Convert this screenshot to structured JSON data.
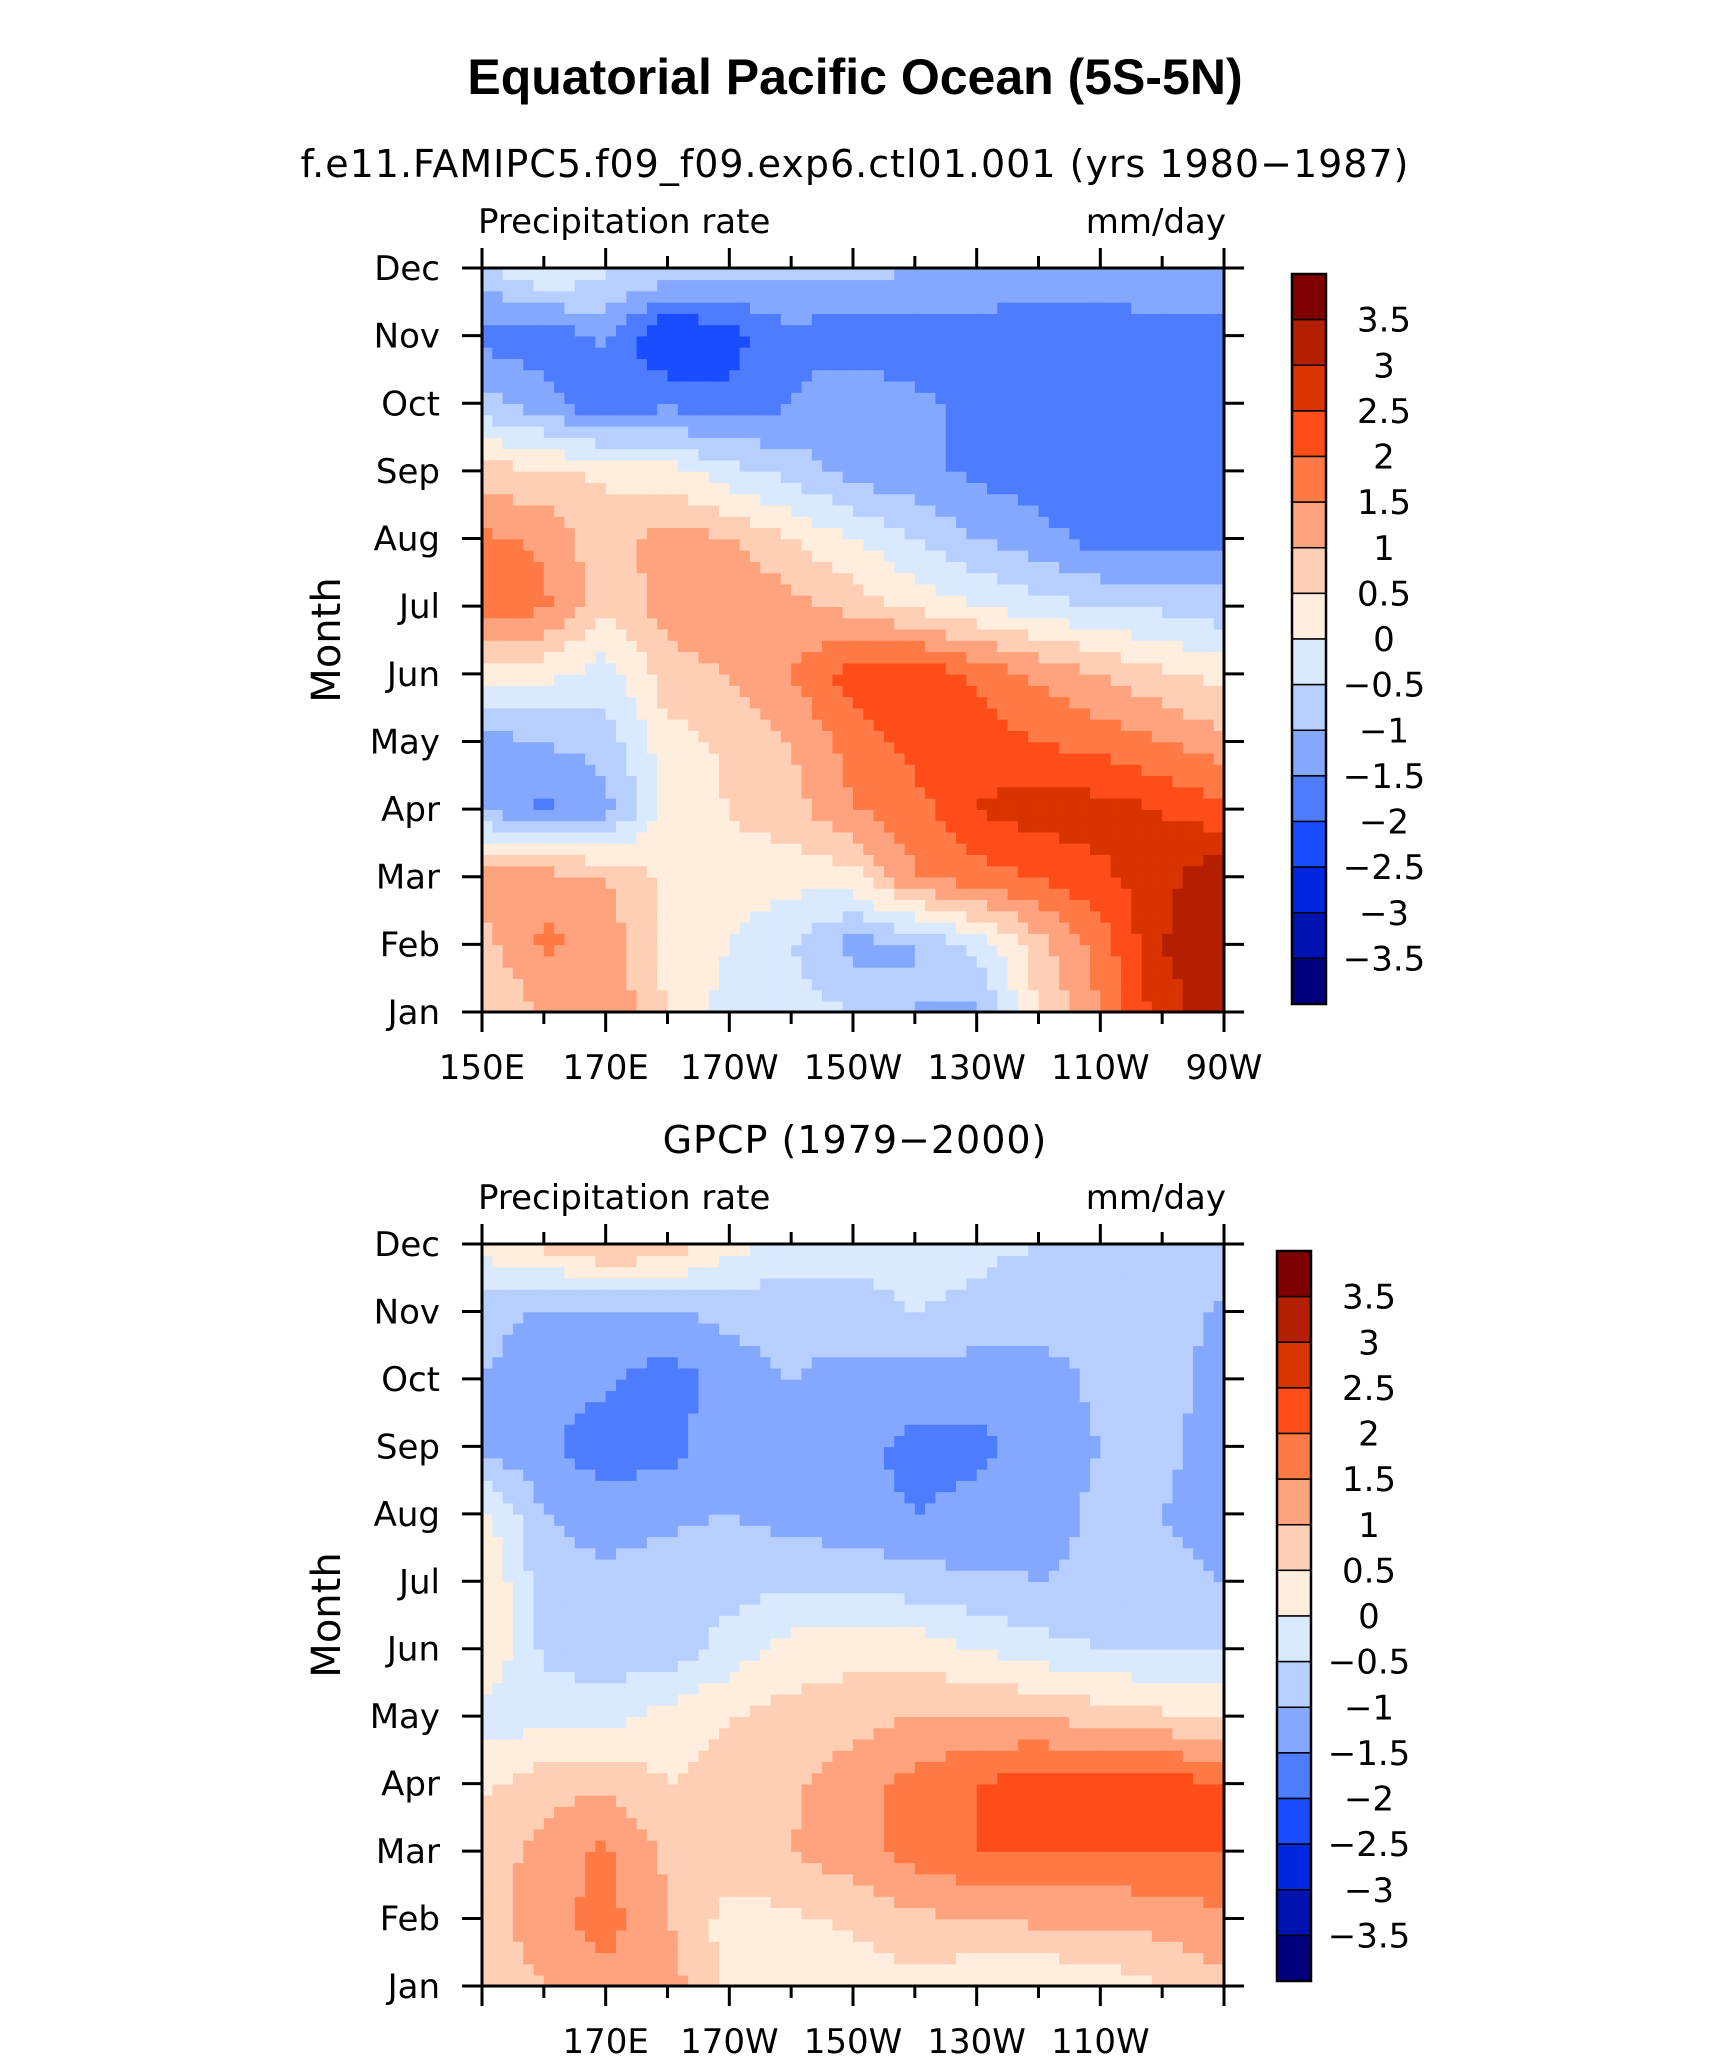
{
  "figure": {
    "title": "Equatorial Pacific Ocean (5S-5N)"
  },
  "colorbar": {
    "levels": [
      3.5,
      3,
      2.5,
      2,
      1.5,
      1,
      0.5,
      0,
      -0.5,
      -1,
      -1.5,
      -2,
      -2.5,
      -3,
      -3.5
    ],
    "labels": [
      "3.5",
      "3",
      "2.5",
      "2",
      "1.5",
      "1",
      "0.5",
      "0",
      "−0.5",
      "−1",
      "−1.5",
      "−2",
      "−2.5",
      "−3",
      "−3.5"
    ],
    "colors": [
      "#7f0000",
      "#b31f00",
      "#d93300",
      "#ff4d1a",
      "#ff7a45",
      "#ffa37f",
      "#ffcfb5",
      "#ffeedd",
      "#d9eaff",
      "#b7cfff",
      "#85a8ff",
      "#4d7cff",
      "#1a4dff",
      "#0026e0",
      "#0012b0",
      "#00007f"
    ]
  },
  "chart_data": [
    {
      "type": "heatmap",
      "subtitle": "f.e11.FAMIPC5.f09_f09.exp6.ctl01.001 (yrs 1980−1987)",
      "left_label": "Precipitation rate",
      "right_label": "mm/day",
      "ylabel": "Month",
      "x_tick_labels": [
        "150E",
        "170E",
        "170W",
        "150W",
        "130W",
        "110W",
        "90W"
      ],
      "y_tick_labels": [
        "Jan",
        "Feb",
        "Mar",
        "Apr",
        "May",
        "Jun",
        "Jul",
        "Aug",
        "Sep",
        "Oct",
        "Nov",
        "Dec"
      ],
      "x_longitudes": [
        150,
        160,
        170,
        180,
        190,
        200,
        210,
        220,
        230,
        240,
        250,
        260,
        270
      ],
      "z": [
        [
          0.5,
          1.0,
          1.5,
          0.5,
          -0.2,
          -0.3,
          -0.5,
          -1.0,
          -1.2,
          0.5,
          1.5,
          2.8,
          3.3
        ],
        [
          0.8,
          1.6,
          1.3,
          0.3,
          0.0,
          -0.5,
          -1.2,
          -1.0,
          -0.3,
          0.8,
          1.7,
          3.0,
          3.4
        ],
        [
          1.2,
          1.3,
          1.0,
          0.4,
          0.3,
          0.2,
          0.3,
          1.5,
          1.8,
          2.0,
          2.4,
          2.8,
          3.5
        ],
        [
          -1.0,
          -1.6,
          -1.2,
          0.2,
          0.5,
          0.8,
          1.5,
          1.8,
          2.5,
          2.8,
          2.7,
          2.5,
          2.1
        ],
        [
          -1.2,
          -1.0,
          -0.8,
          0.3,
          0.6,
          1.0,
          1.7,
          2.2,
          2.3,
          2.0,
          1.8,
          1.5,
          1.2
        ],
        [
          0.3,
          0.2,
          -0.3,
          0.8,
          1.0,
          1.5,
          2.3,
          2.5,
          1.9,
          1.4,
          1.0,
          0.6,
          0.3
        ],
        [
          1.8,
          1.6,
          0.6,
          1.2,
          1.5,
          1.2,
          0.8,
          0.4,
          0.0,
          -0.3,
          -0.5,
          -0.6,
          -0.8
        ],
        [
          1.6,
          1.4,
          0.7,
          1.3,
          1.0,
          0.5,
          0.0,
          -0.5,
          -1.0,
          -1.3,
          -1.7,
          -1.6,
          -1.6
        ],
        [
          0.7,
          0.6,
          0.4,
          0.2,
          -0.3,
          -0.7,
          -1.2,
          -1.4,
          -1.6,
          -1.8,
          -1.8,
          -1.7,
          -1.5
        ],
        [
          -0.8,
          -1.3,
          -2.0,
          -1.6,
          -1.9,
          -1.5,
          -1.0,
          -1.4,
          -1.6,
          -1.8,
          -1.8,
          -1.8,
          -2.0
        ],
        [
          -1.7,
          -1.8,
          -1.4,
          -2.6,
          -2.2,
          -1.6,
          -2.0,
          -1.8,
          -1.8,
          -1.9,
          -1.9,
          -1.8,
          -1.8
        ],
        [
          -0.7,
          0.1,
          -0.4,
          -0.6,
          -0.9,
          -0.8,
          -0.7,
          -1.0,
          -1.0,
          -1.1,
          -1.0,
          -1.0,
          -1.0
        ]
      ]
    },
    {
      "type": "heatmap",
      "subtitle": "GPCP (1979−2000)",
      "left_label": "Precipitation rate",
      "right_label": "mm/day",
      "ylabel": "Month",
      "x_tick_labels": [
        "170E",
        "170W",
        "150W",
        "130W",
        "110W"
      ],
      "y_tick_labels": [
        "Jan",
        "Feb",
        "Mar",
        "Apr",
        "May",
        "Jun",
        "Jul",
        "Aug",
        "Sep",
        "Oct",
        "Nov",
        "Dec"
      ],
      "x_longitudes": [
        150,
        160,
        170,
        180,
        190,
        200,
        210,
        220,
        230,
        240,
        250,
        260,
        270
      ],
      "z": [
        [
          0.6,
          1.0,
          1.4,
          1.3,
          0.3,
          0.2,
          0.2,
          0.3,
          0.1,
          0.0,
          0.2,
          0.5,
          0.9
        ],
        [
          0.8,
          1.3,
          1.7,
          1.0,
          0.3,
          0.4,
          0.6,
          0.9,
          1.0,
          1.1,
          1.1,
          1.2,
          1.4
        ],
        [
          0.7,
          1.2,
          1.6,
          0.9,
          0.8,
          1.0,
          1.3,
          1.7,
          2.0,
          2.0,
          2.0,
          2.0,
          2.0
        ],
        [
          0.4,
          0.8,
          0.9,
          0.5,
          0.7,
          0.9,
          1.3,
          1.7,
          2.0,
          2.3,
          2.1,
          2.3,
          2.0
        ],
        [
          -0.3,
          -0.2,
          -0.2,
          0.2,
          0.5,
          0.7,
          0.8,
          1.0,
          1.0,
          1.0,
          0.8,
          0.6,
          0.4
        ],
        [
          0.5,
          -0.6,
          -0.8,
          -0.8,
          -0.3,
          0.2,
          0.3,
          0.3,
          0.0,
          -0.3,
          -0.5,
          -0.5,
          -0.5
        ],
        [
          0.6,
          -0.8,
          -0.9,
          -0.8,
          -0.7,
          -0.6,
          -0.6,
          -0.8,
          -0.9,
          -1.0,
          -0.9,
          -0.8,
          -1.0
        ],
        [
          0.2,
          -1.0,
          -1.2,
          -1.1,
          -1.0,
          -1.2,
          -1.4,
          -1.5,
          -1.4,
          -1.2,
          -0.9,
          -1.0,
          -1.3
        ],
        [
          -1.2,
          -1.4,
          -1.8,
          -1.7,
          -1.1,
          -1.2,
          -1.4,
          -1.6,
          -1.6,
          -1.3,
          -1.0,
          -0.9,
          -1.2
        ],
        [
          -1.0,
          -1.3,
          -1.4,
          -1.8,
          -1.2,
          -1.0,
          -1.2,
          -1.3,
          -1.3,
          -1.2,
          -0.9,
          -0.8,
          -1.2
        ],
        [
          -0.8,
          -1.1,
          -1.2,
          -1.0,
          -0.9,
          -0.8,
          -0.7,
          -0.5,
          -0.6,
          -0.8,
          -0.8,
          -0.8,
          -1.1
        ],
        [
          0.2,
          0.6,
          1.2,
          0.9,
          0.2,
          -0.2,
          -0.3,
          -0.3,
          -0.4,
          -0.5,
          -0.5,
          -0.6,
          -0.7
        ]
      ]
    }
  ]
}
